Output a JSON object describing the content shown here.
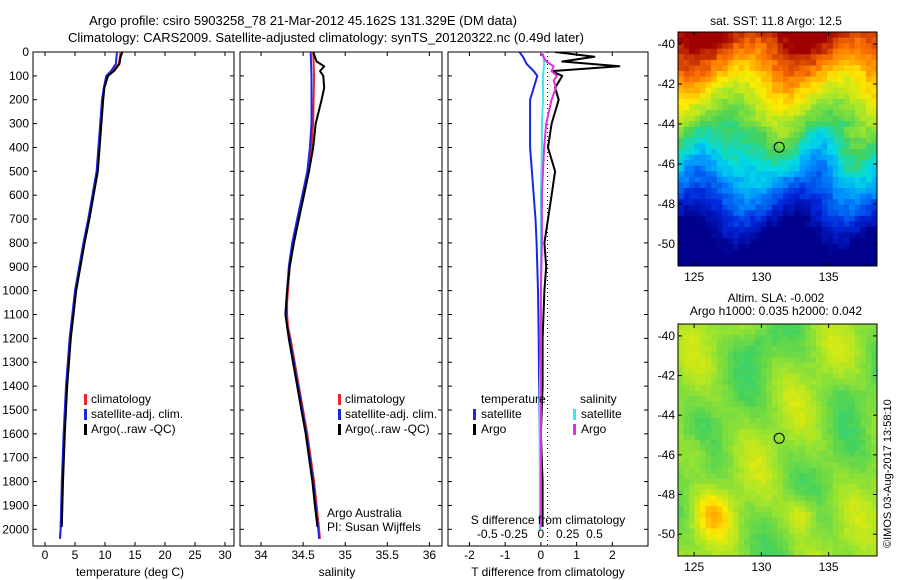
{
  "header": {
    "line1": "Argo profile: csiro 5903258_78 21-Mar-2012 45.162S 131.329E (DM data)",
    "line2": "Climatology: CARS2009. Satellite-adjusted climatology: synTS_20120322.nc (0.49d later)"
  },
  "colors": {
    "climatology": "#e8252a",
    "satellite": "#1b26e0",
    "argo": "#000000",
    "sat_salinity": "#3fe6ea",
    "argo_salinity": "#e030e0"
  },
  "depth_axis": {
    "ticks": [
      "0",
      "100",
      "200",
      "300",
      "400",
      "500",
      "600",
      "700",
      "800",
      "900",
      "1000",
      "1100",
      "1200",
      "1300",
      "1400",
      "1500",
      "1600",
      "1700",
      "1800",
      "1900",
      "2000"
    ]
  },
  "chart_data": [
    {
      "type": "line",
      "id": "temperature",
      "xlabel": "temperature (deg C)",
      "xlim": [
        -2,
        31.5
      ],
      "ylim": [
        0,
        2070
      ],
      "xticks": [
        "0",
        "5",
        "10",
        "15",
        "20",
        "25",
        "30"
      ],
      "legend": [
        "climatology",
        "satellite-adj. clim.",
        "Argo(..raw -QC)"
      ],
      "series": [
        {
          "name": "climatology",
          "depth": [
            0,
            50,
            80,
            100,
            150,
            200,
            300,
            400,
            500,
            600,
            700,
            800,
            900,
            1000,
            1200,
            1400,
            1600,
            1800,
            2000,
            2040
          ],
          "values": [
            12.6,
            12.3,
            11.2,
            10.3,
            9.8,
            9.6,
            9.3,
            9.0,
            8.7,
            8.0,
            7.3,
            6.5,
            5.8,
            5.1,
            4.2,
            3.6,
            3.2,
            2.9,
            2.6,
            2.5
          ]
        },
        {
          "name": "satellite-adj. clim.",
          "depth": [
            0,
            50,
            80,
            100,
            150,
            200,
            300,
            400,
            500,
            600,
            700,
            800,
            900,
            1000,
            1200,
            1400,
            1600,
            1800,
            2000,
            2040
          ],
          "values": [
            12.0,
            11.8,
            11.0,
            10.2,
            9.8,
            9.5,
            9.2,
            8.9,
            8.6,
            7.9,
            7.2,
            6.4,
            5.7,
            5.0,
            4.1,
            3.5,
            3.1,
            2.8,
            2.6,
            2.5
          ]
        },
        {
          "name": "Argo(..raw -QC)",
          "depth": [
            0,
            20,
            50,
            80,
            100,
            150,
            200,
            300,
            400,
            500,
            600,
            700,
            800,
            900,
            1000,
            1200,
            1400,
            1600,
            1800,
            1990
          ],
          "values": [
            12.9,
            12.6,
            12.4,
            11.5,
            10.5,
            9.9,
            9.7,
            9.4,
            9.1,
            8.8,
            8.1,
            7.4,
            6.6,
            5.9,
            5.2,
            4.3,
            3.7,
            3.3,
            3.0,
            2.8
          ]
        }
      ]
    },
    {
      "type": "line",
      "id": "salinity",
      "xlabel": "salinity",
      "xlim": [
        33.75,
        36.15
      ],
      "ylim": [
        0,
        2070
      ],
      "xticks": [
        "34",
        "34.5",
        "35",
        "35.5",
        "36"
      ],
      "legend": [
        "climatology",
        "satellite-adj. clim.",
        "Argo(..raw -QC)"
      ],
      "annotation": [
        "Argo Australia",
        "PI: Susan Wijffels"
      ],
      "series": [
        {
          "name": "climatology",
          "depth": [
            0,
            100,
            300,
            400,
            500,
            600,
            700,
            800,
            900,
            1000,
            1050,
            1100,
            1150,
            1200,
            1300,
            1400,
            1500,
            1600,
            1700,
            1800,
            1900,
            2000,
            2040
          ],
          "values": [
            34.62,
            34.63,
            34.62,
            34.6,
            34.56,
            34.5,
            34.44,
            34.38,
            34.34,
            34.32,
            34.31,
            34.31,
            34.32,
            34.35,
            34.4,
            34.45,
            34.5,
            34.55,
            34.59,
            34.63,
            34.66,
            34.69,
            34.7
          ]
        },
        {
          "name": "satellite-adj. clim.",
          "depth": [
            0,
            100,
            300,
            400,
            500,
            600,
            700,
            800,
            900,
            1000,
            1050,
            1100,
            1150,
            1200,
            1300,
            1400,
            1500,
            1600,
            1700,
            1800,
            1900,
            2000,
            2040
          ],
          "values": [
            34.59,
            34.6,
            34.6,
            34.58,
            34.55,
            34.49,
            34.43,
            34.37,
            34.33,
            34.31,
            34.3,
            34.3,
            34.31,
            34.34,
            34.39,
            34.44,
            34.49,
            34.54,
            34.58,
            34.62,
            34.65,
            34.68,
            34.69
          ]
        },
        {
          "name": "Argo(..raw -QC)",
          "depth": [
            0,
            40,
            60,
            80,
            100,
            150,
            200,
            300,
            400,
            500,
            600,
            700,
            800,
            900,
            1000,
            1100,
            1200,
            1300,
            1400,
            1500,
            1600,
            1700,
            1800,
            1900,
            1990
          ],
          "values": [
            34.62,
            34.66,
            34.75,
            34.7,
            34.74,
            34.75,
            34.72,
            34.65,
            34.62,
            34.57,
            34.51,
            34.45,
            34.39,
            34.34,
            34.31,
            34.29,
            34.33,
            34.38,
            34.43,
            34.48,
            34.53,
            34.57,
            34.61,
            34.64,
            34.67
          ]
        }
      ]
    },
    {
      "type": "line",
      "id": "differences",
      "xlabel": "T difference from climatology",
      "xlabel2": "S difference from climatology",
      "xlim": [
        -2.6,
        3.0
      ],
      "ylim": [
        0,
        2070
      ],
      "xticks": [
        "-2",
        "-1",
        "0",
        "1",
        "2"
      ],
      "xticks2": [
        "-0.5",
        "-0.25",
        "0",
        "0.25",
        "0.5"
      ],
      "legend_temperature": [
        "temperature",
        "satellite",
        "Argo"
      ],
      "legend_salinity": [
        "salinity",
        "satellite",
        "Argo"
      ],
      "series": [
        {
          "name": "temperature satellite",
          "depth": [
            0,
            20,
            50,
            80,
            100,
            150,
            200,
            300,
            400,
            500,
            600,
            700,
            800,
            900,
            1000,
            1200,
            1400,
            1600,
            1800,
            2000
          ],
          "values": [
            -0.6,
            -0.5,
            -0.4,
            -0.2,
            -0.1,
            -0.2,
            -0.3,
            -0.3,
            -0.3,
            -0.25,
            -0.2,
            -0.15,
            -0.12,
            -0.1,
            -0.08,
            -0.06,
            -0.05,
            -0.03,
            -0.02,
            -0.02
          ]
        },
        {
          "name": "temperature Argo",
          "depth": [
            0,
            20,
            40,
            60,
            80,
            100,
            150,
            200,
            300,
            400,
            500,
            600,
            700,
            800,
            900,
            1000,
            1200,
            1400,
            1600,
            1800,
            1990
          ],
          "values": [
            0.4,
            1.5,
            0.6,
            2.2,
            0.3,
            0.6,
            0.4,
            0.5,
            0.3,
            0.2,
            0.4,
            0.3,
            0.2,
            0.1,
            0.15,
            0.1,
            0.05,
            0.05,
            0.0,
            0.05,
            0.05
          ]
        },
        {
          "name": "salinity satellite",
          "depth": [
            0,
            50,
            100,
            200,
            300,
            400,
            600,
            800,
            1000,
            1200,
            1400,
            1600,
            1800,
            2000
          ],
          "values": [
            0.02,
            0.03,
            0.02,
            0.02,
            0.01,
            0.01,
            0.0,
            0.0,
            0.0,
            0.0,
            -0.01,
            -0.01,
            -0.01,
            -0.01
          ]
        },
        {
          "name": "salinity Argo",
          "depth": [
            0,
            40,
            60,
            80,
            100,
            120,
            150,
            200,
            300,
            400,
            500,
            600,
            800,
            1000,
            1200,
            1400,
            1600,
            1800,
            1990
          ],
          "values": [
            0.0,
            0.05,
            0.12,
            0.1,
            0.15,
            0.12,
            0.14,
            0.1,
            0.05,
            0.03,
            0.02,
            0.01,
            0.01,
            0.0,
            0.0,
            0.0,
            0.0,
            0.0,
            0.0
          ]
        }
      ]
    },
    {
      "type": "heatmap",
      "id": "sst-map",
      "title": "sat. SST: 11.8 Argo: 12.5",
      "xlim": [
        123.8,
        138.6
      ],
      "ylim": [
        -51.1,
        -39.4
      ],
      "xticks": [
        "125",
        "130",
        "135"
      ],
      "yticks": [
        "-40",
        "-42",
        "-44",
        "-46",
        "-48",
        "-50"
      ],
      "marker": {
        "lon": 131.329,
        "lat": -45.162
      }
    },
    {
      "type": "heatmap",
      "id": "sla-map",
      "title": "Altim. SLA: -0.002",
      "subtitle": "Argo h1000: 0.035 h2000: 0.042",
      "xlim": [
        123.8,
        138.6
      ],
      "ylim": [
        -51.1,
        -39.4
      ],
      "xticks": [
        "125",
        "130",
        "135"
      ],
      "yticks": [
        "-40",
        "-42",
        "-44",
        "-46",
        "-48",
        "-50"
      ],
      "marker": {
        "lon": 131.329,
        "lat": -45.162
      }
    }
  ],
  "credit": "©IMOS 03-Aug-2017 13:58:10"
}
